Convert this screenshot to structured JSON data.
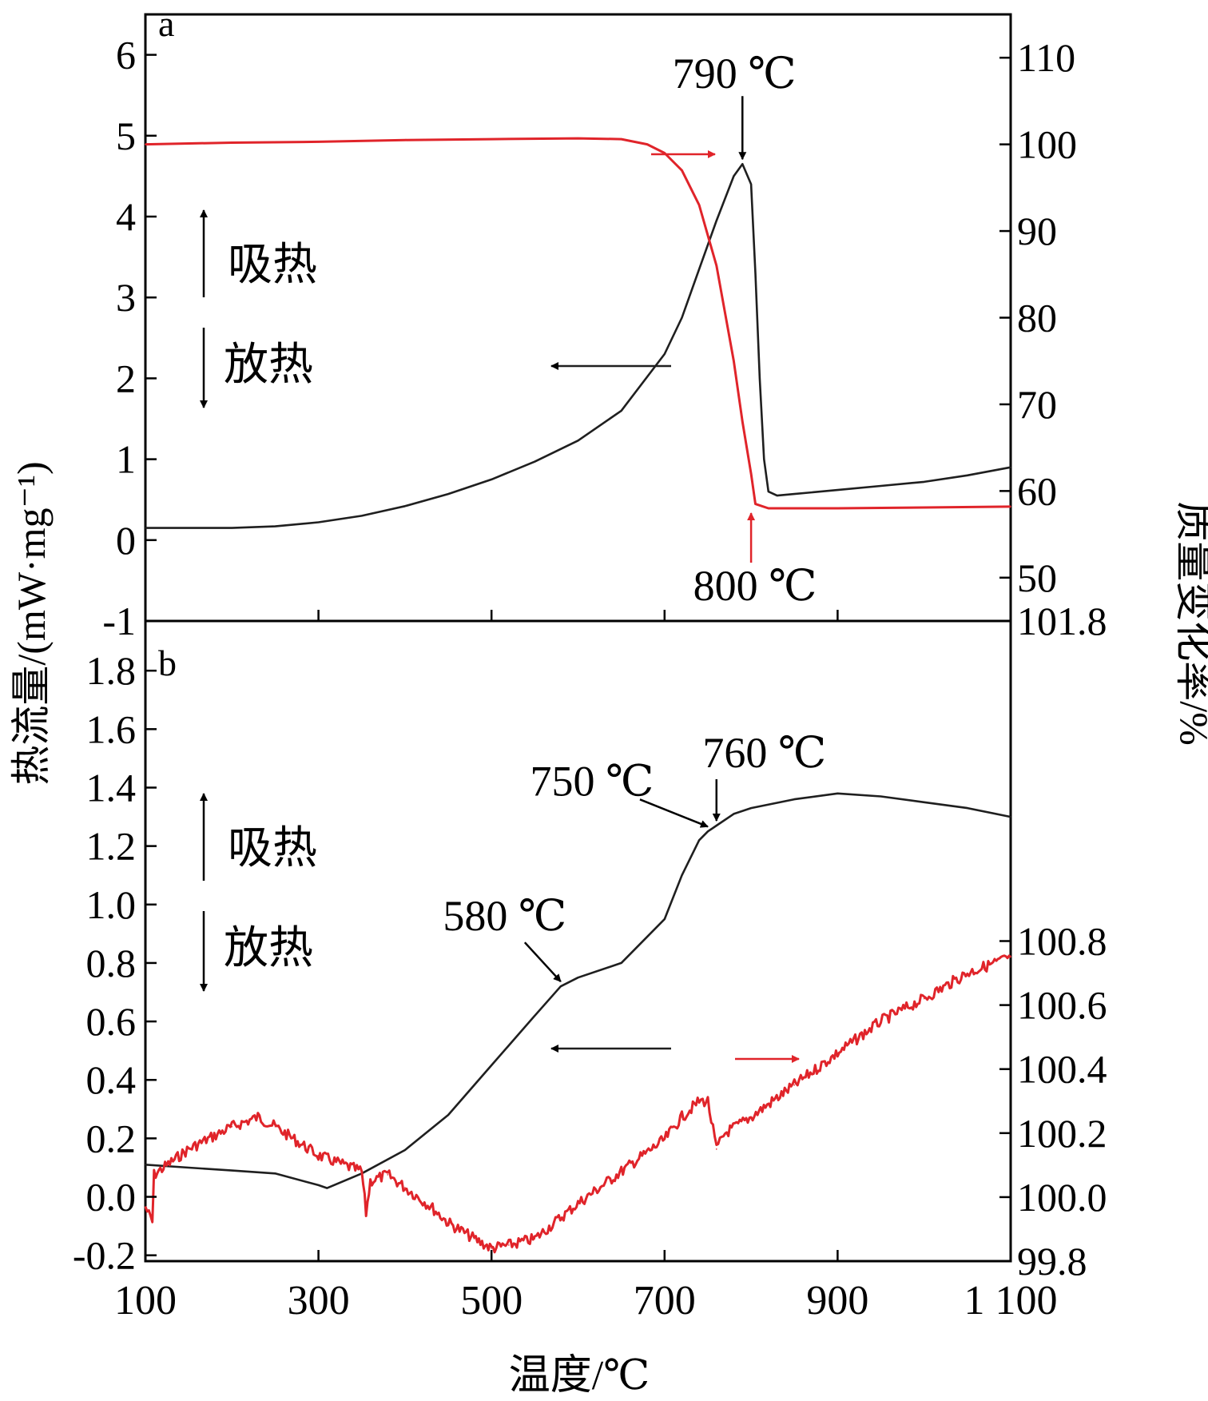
{
  "figure": {
    "shared_ylabel_left": "热流量/(mW·mg⁻¹)",
    "shared_ylabel_right": "质量变化率/%",
    "xlabel": "温度/℃",
    "x_ticks": [
      100,
      300,
      500,
      700,
      900,
      1100
    ],
    "x_tick_labels": [
      "100",
      "300",
      "500",
      "700",
      "900",
      "1 100"
    ],
    "colors": {
      "dsc": "#1f1f1f",
      "tg": "#e0242a",
      "axis": "#000000"
    },
    "endo_label": "吸热",
    "exo_label": "放热"
  },
  "chart_data": [
    {
      "type": "line",
      "panel_label": "a",
      "xlim": [
        100,
        1100
      ],
      "ylim_left": [
        -1,
        6.5
      ],
      "y_ticks_left": [
        -1,
        0,
        1,
        2,
        3,
        4,
        5,
        6
      ],
      "y_tick_labels_left": [
        "-1",
        "0",
        "1",
        "2",
        "3",
        "4",
        "5",
        "6"
      ],
      "ylim_right": [
        45,
        115
      ],
      "y_ticks_right": [
        50,
        60,
        70,
        80,
        90,
        100,
        110
      ],
      "y_tick_labels_right": [
        "50",
        "60",
        "70",
        "80",
        "90",
        "100",
        "110"
      ],
      "series": [
        {
          "axis": "left",
          "x": [
            100,
            150,
            200,
            250,
            300,
            350,
            400,
            450,
            500,
            550,
            600,
            650,
            700,
            720,
            740,
            760,
            780,
            790,
            800,
            805,
            810,
            815,
            820,
            830,
            850,
            900,
            950,
            1000,
            1050,
            1100
          ],
          "y": [
            0.15,
            0.15,
            0.15,
            0.17,
            0.22,
            0.3,
            0.42,
            0.57,
            0.75,
            0.97,
            1.23,
            1.6,
            2.3,
            2.75,
            3.35,
            3.95,
            4.5,
            4.65,
            4.4,
            3.3,
            2.0,
            1.0,
            0.6,
            0.55,
            0.57,
            0.62,
            0.67,
            0.72,
            0.8,
            0.9
          ]
        },
        {
          "axis": "right",
          "x": [
            100,
            200,
            300,
            400,
            500,
            600,
            650,
            680,
            700,
            720,
            740,
            760,
            780,
            790,
            800,
            805,
            820,
            900,
            1000,
            1100
          ],
          "y": [
            100.0,
            100.2,
            100.3,
            100.5,
            100.6,
            100.7,
            100.6,
            100.0,
            99.0,
            97.0,
            93.0,
            86.0,
            75.0,
            68.0,
            62.0,
            58.5,
            58.0,
            58.0,
            58.1,
            58.2
          ]
        }
      ],
      "annotations": [
        {
          "label": "790 ℃",
          "x": 790,
          "axis": "left",
          "y": 4.65
        },
        {
          "label": "800 ℃",
          "x": 800,
          "axis": "right",
          "y": 58.0
        }
      ]
    },
    {
      "type": "line",
      "panel_label": "b",
      "xlim": [
        100,
        1100
      ],
      "ylim_left": [
        -0.22,
        1.97
      ],
      "y_ticks_left": [
        -0.2,
        0.0,
        0.2,
        0.4,
        0.6,
        0.8,
        1.0,
        1.2,
        1.4,
        1.6,
        1.8
      ],
      "y_tick_labels_left": [
        "-0.2",
        "0.0",
        "0.2",
        "0.4",
        "0.6",
        "0.8",
        "1.0",
        "1.2",
        "1.4",
        "1.6",
        "1.8"
      ],
      "ylim_right": [
        99.8,
        101.8
      ],
      "y_ticks_right": [
        99.8,
        100.0,
        100.2,
        100.4,
        100.6,
        100.8,
        101.8
      ],
      "y_tick_labels_right": [
        "99.8",
        "100.0",
        "100.2",
        "100.4",
        "100.6",
        "100.8",
        "101.8"
      ],
      "series": [
        {
          "axis": "left",
          "x": [
            100,
            150,
            200,
            250,
            300,
            310,
            350,
            400,
            450,
            500,
            550,
            580,
            600,
            650,
            700,
            720,
            740,
            750,
            760,
            780,
            800,
            850,
            900,
            950,
            1000,
            1050,
            1100
          ],
          "y": [
            0.11,
            0.1,
            0.09,
            0.08,
            0.04,
            0.03,
            0.08,
            0.16,
            0.28,
            0.45,
            0.62,
            0.72,
            0.75,
            0.8,
            0.95,
            1.1,
            1.22,
            1.25,
            1.27,
            1.31,
            1.33,
            1.36,
            1.38,
            1.37,
            1.35,
            1.33,
            1.3
          ]
        },
        {
          "axis": "right",
          "x": [
            100,
            108,
            110,
            150,
            200,
            230,
            250,
            300,
            350,
            355,
            360,
            380,
            400,
            430,
            450,
            480,
            500,
            520,
            550,
            600,
            650,
            700,
            720,
            740,
            750,
            760,
            770,
            800,
            850,
            900,
            950,
            1000,
            1050,
            1100
          ],
          "y": [
            99.97,
            99.92,
            100.07,
            100.15,
            100.22,
            100.25,
            100.22,
            100.13,
            100.08,
            99.95,
            100.05,
            100.07,
            100.03,
            99.97,
            99.92,
            99.87,
            99.84,
            99.85,
            99.87,
            99.98,
            100.08,
            100.18,
            100.25,
            100.3,
            100.3,
            100.15,
            100.2,
            100.25,
            100.35,
            100.45,
            100.55,
            100.62,
            100.7,
            100.75
          ]
        }
      ],
      "annotations": [
        {
          "label": "580 ℃",
          "x": 580,
          "axis": "left",
          "y": 0.72
        },
        {
          "label": "750 ℃",
          "x": 750,
          "axis": "left",
          "y": 1.25
        },
        {
          "label": "760 ℃",
          "x": 760,
          "axis": "left",
          "y": 1.27
        }
      ]
    }
  ]
}
